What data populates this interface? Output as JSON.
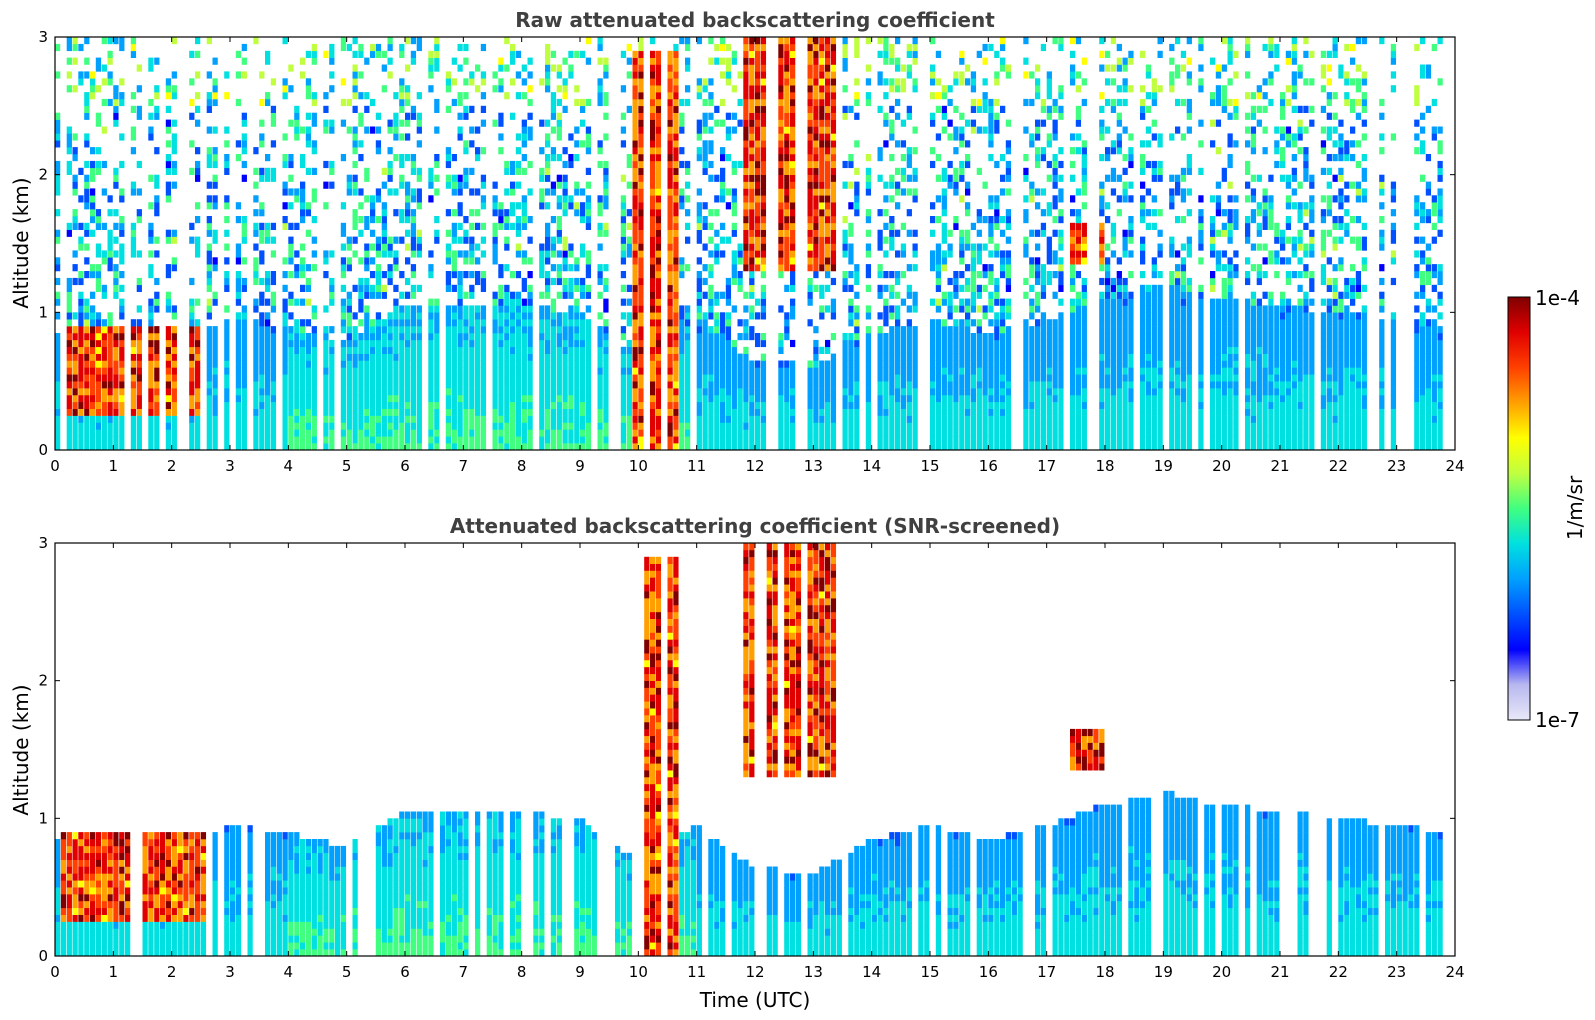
{
  "chart_data": [
    {
      "type": "heatmap",
      "title": "Raw attenuated backscattering coefficient",
      "xlabel": "",
      "ylabel": "Altitude (km)",
      "xlim": [
        0,
        24
      ],
      "ylim": [
        0,
        3
      ],
      "x_ticks": [
        0,
        1,
        2,
        3,
        4,
        5,
        6,
        7,
        8,
        9,
        10,
        11,
        12,
        13,
        14,
        15,
        16,
        17,
        18,
        19,
        20,
        21,
        22,
        23,
        24
      ],
      "y_ticks": [
        0,
        1,
        2,
        3
      ],
      "data_extent_x": [
        0,
        23.8
      ],
      "features": [
        {
          "name": "boundary layer",
          "x_range": [
            0,
            23.8
          ],
          "top_km": 0.9
        },
        {
          "name": "low cloud",
          "x_range": [
            0.1,
            2.6
          ],
          "alt_range_km": [
            0.25,
            0.9
          ]
        },
        {
          "name": "cloud",
          "x_range": [
            9.9,
            10.7
          ],
          "alt_range_km": [
            0,
            2.9
          ]
        },
        {
          "name": "cloud",
          "x_range": [
            11.8,
            13.4
          ],
          "alt_range_km": [
            1.3,
            3.0
          ]
        },
        {
          "name": "cloud",
          "x_range": [
            17.4,
            18.0
          ],
          "alt_range_km": [
            1.35,
            1.65
          ]
        }
      ]
    },
    {
      "type": "heatmap",
      "title": "Attenuated backscattering coefficient (SNR-screened)",
      "xlabel": "Time (UTC)",
      "ylabel": "Altitude (km)",
      "xlim": [
        0,
        24
      ],
      "ylim": [
        0,
        3
      ],
      "x_ticks": [
        0,
        1,
        2,
        3,
        4,
        5,
        6,
        7,
        8,
        9,
        10,
        11,
        12,
        13,
        14,
        15,
        16,
        17,
        18,
        19,
        20,
        21,
        22,
        23,
        24
      ],
      "y_ticks": [
        0,
        1,
        2,
        3
      ],
      "data_extent_x": [
        0,
        23.8
      ],
      "boundary_layer_top_km": [
        [
          0,
          0.85
        ],
        [
          1,
          0.8
        ],
        [
          2,
          0.8
        ],
        [
          3,
          0.95
        ],
        [
          4,
          0.9
        ],
        [
          5,
          0.8
        ],
        [
          6,
          1.05
        ],
        [
          7,
          1.05
        ],
        [
          8,
          1.05
        ],
        [
          9,
          1.0
        ],
        [
          10,
          0.7
        ],
        [
          11,
          0.95
        ],
        [
          12,
          0.65
        ],
        [
          13,
          0.6
        ],
        [
          14,
          0.85
        ],
        [
          15,
          0.95
        ],
        [
          16,
          0.85
        ],
        [
          17,
          0.95
        ],
        [
          18,
          1.1
        ],
        [
          19,
          1.2
        ],
        [
          20,
          1.1
        ],
        [
          21,
          1.05
        ],
        [
          22,
          1.0
        ],
        [
          23,
          0.95
        ],
        [
          23.8,
          0.9
        ]
      ]
    }
  ],
  "colorbar": {
    "label": "1/m/sr",
    "max_label": "1e-4",
    "min_label": "1e-7",
    "colormap": [
      "#e8e8f8",
      "#b8b8f0",
      "#0000ff",
      "#0050ff",
      "#00a0ff",
      "#00e0e0",
      "#40ff80",
      "#c0ff40",
      "#ffff00",
      "#ffa000",
      "#ff4000",
      "#e00000",
      "#800000"
    ]
  }
}
